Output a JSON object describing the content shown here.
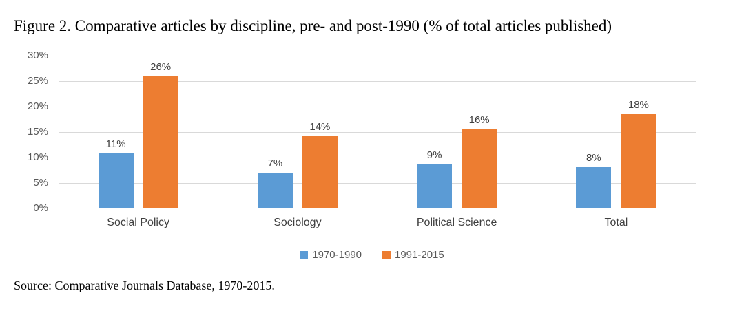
{
  "title": "Figure 2. Comparative articles by discipline, pre- and post-1990 (% of total articles published)",
  "source_note": "Source: Comparative Journals Database, 1970-2015.",
  "colors": {
    "series_1970_1990": "#5B9BD5",
    "series_1991_2015": "#ED7D31",
    "gridline": "#D9D9D9",
    "axis_label_text": "#595959",
    "data_label_text": "#404040",
    "background": "#FFFFFF"
  },
  "chart_data": {
    "type": "bar",
    "title": "Figure 2. Comparative articles by discipline, pre- and post-1990 (% of total articles published)",
    "xlabel": "",
    "ylabel": "",
    "categories": [
      "Social Policy",
      "Sociology",
      "Political Science",
      "Total"
    ],
    "series": [
      {
        "name": "1970-1990",
        "color": "#5B9BD5",
        "values": [
          11,
          7,
          9,
          8
        ],
        "drawn_values": [
          10.8,
          7.0,
          8.6,
          8.1
        ],
        "data_labels": [
          "11%",
          "7%",
          "9%",
          "8%"
        ]
      },
      {
        "name": "1991-2015",
        "color": "#ED7D31",
        "values": [
          26,
          14,
          16,
          18
        ],
        "drawn_values": [
          25.9,
          14.2,
          15.6,
          18.5
        ],
        "data_labels": [
          "26%",
          "14%",
          "16%",
          "18%"
        ]
      }
    ],
    "ylim": [
      0,
      30
    ],
    "y_ticks": [
      {
        "value": 30,
        "label": "30%"
      },
      {
        "value": 25,
        "label": "25%"
      },
      {
        "value": 20,
        "label": "20%"
      },
      {
        "value": 15,
        "label": "15%"
      },
      {
        "value": 10,
        "label": "10%"
      },
      {
        "value": 5,
        "label": "5%"
      },
      {
        "value": 0,
        "label": "0%"
      }
    ],
    "grid": true,
    "legend_position": "bottom"
  }
}
